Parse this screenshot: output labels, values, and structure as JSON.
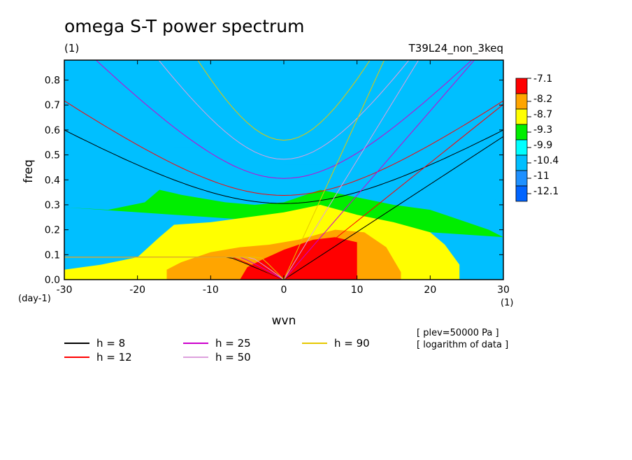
{
  "chart_data": {
    "type": "heatmap",
    "title": "omega S-T power spectrum",
    "subtitle_left": "(1)",
    "subtitle_right": "T39L24_non_3keq",
    "xlabel": "wvn",
    "ylabel": "freq",
    "x_unit": "(1)",
    "y_unit": "(day-1)",
    "xlim": [
      -30,
      30
    ],
    "ylim": [
      0,
      0.88
    ],
    "xticks": [
      -30,
      -20,
      -10,
      0,
      10,
      20,
      30
    ],
    "xtick_labels": [
      "-30",
      "-20",
      "-10",
      "0",
      "10",
      "20",
      "30"
    ],
    "yticks": [
      0,
      0.1,
      0.2,
      0.3,
      0.4,
      0.5,
      0.6,
      0.7,
      0.8
    ],
    "ytick_labels": [
      "0.0",
      "0.1",
      "0.2",
      "0.3",
      "0.4",
      "0.5",
      "0.6",
      "0.7",
      "0.8"
    ],
    "colorbar": {
      "levels": [
        "-7.1",
        "-8.2",
        "-8.7",
        "-9.3",
        "-9.9",
        "-10.4",
        "-11",
        "-12.1"
      ],
      "colors": [
        "#ff0000",
        "#ffa500",
        "#ffff00",
        "#00ee00",
        "#00ffff",
        "#00bfff",
        "#1e90ff",
        "#0064ff"
      ]
    },
    "filled_regions": [
      {
        "level": "top",
        "color": "#0064ff",
        "boundary": [
          [
            -30,
            0.88
          ],
          [
            -30,
            0.79
          ],
          [
            -24,
            0.74
          ],
          [
            -18,
            0.73
          ],
          [
            -10,
            0.76
          ],
          [
            -4,
            0.79
          ],
          [
            0,
            0.78
          ],
          [
            3,
            0.81
          ],
          [
            5,
            0.85
          ],
          [
            6,
            0.88
          ]
        ]
      },
      {
        "level": "top-right",
        "color": "#0064ff",
        "boundary": [
          [
            19,
            0.88
          ],
          [
            20,
            0.84
          ],
          [
            24,
            0.81
          ],
          [
            28,
            0.83
          ],
          [
            30,
            0.85
          ],
          [
            30,
            0.88
          ]
        ]
      },
      {
        "level": "-11",
        "color": "#1e90ff",
        "boundary": [
          [
            -30,
            0.88
          ],
          [
            -30,
            0.69
          ],
          [
            -24,
            0.67
          ],
          [
            -16,
            0.66
          ],
          [
            -8,
            0.67
          ],
          [
            -2,
            0.68
          ],
          [
            4,
            0.71
          ],
          [
            10,
            0.73
          ],
          [
            16,
            0.75
          ],
          [
            22,
            0.75
          ],
          [
            26,
            0.79
          ],
          [
            28,
            0.82
          ],
          [
            30,
            0.83
          ],
          [
            30,
            0.88
          ]
        ]
      },
      {
        "level": "-10.4",
        "color": "#00bfff",
        "boundary": [
          [
            -30,
            0.88
          ],
          [
            -30,
            0.49
          ],
          [
            -25,
            0.47
          ],
          [
            -20,
            0.49
          ],
          [
            -15,
            0.53
          ],
          [
            -10,
            0.53
          ],
          [
            -5,
            0.5
          ],
          [
            0,
            0.46
          ],
          [
            5,
            0.46
          ],
          [
            10,
            0.46
          ],
          [
            15,
            0.43
          ],
          [
            20,
            0.4
          ],
          [
            25,
            0.36
          ],
          [
            28,
            0.33
          ],
          [
            30,
            0.31
          ],
          [
            30,
            0.88
          ]
        ]
      },
      {
        "level": "-9.9",
        "color": "#00ee00",
        "boundary": [
          [
            -30,
            0.29
          ],
          [
            -24,
            0.28
          ],
          [
            -19,
            0.31
          ],
          [
            -17,
            0.36
          ],
          [
            -14,
            0.34
          ],
          [
            -8,
            0.31
          ],
          [
            -4,
            0.3
          ],
          [
            0,
            0.31
          ],
          [
            5,
            0.36
          ],
          [
            10,
            0.33
          ],
          [
            15,
            0.3
          ],
          [
            20,
            0.28
          ],
          [
            25,
            0.23
          ],
          [
            28,
            0.2
          ],
          [
            30,
            0.17
          ]
        ]
      },
      {
        "level": "-9.3",
        "color": "#ffff00",
        "boundary": [
          [
            -30,
            0.04
          ],
          [
            -25,
            0.06
          ],
          [
            -20,
            0.09
          ],
          [
            -17,
            0.17
          ],
          [
            -15,
            0.22
          ],
          [
            -10,
            0.23
          ],
          [
            -5,
            0.25
          ],
          [
            0,
            0.27
          ],
          [
            5,
            0.3
          ],
          [
            10,
            0.26
          ],
          [
            15,
            0.23
          ],
          [
            20,
            0.19
          ],
          [
            22,
            0.14
          ],
          [
            24,
            0.06
          ],
          [
            24,
            0
          ],
          [
            -30,
            0
          ]
        ]
      },
      {
        "level": "-8.7",
        "color": "#ffa500",
        "boundary": [
          [
            -16,
            0
          ],
          [
            -16,
            0.04
          ],
          [
            -14,
            0.07
          ],
          [
            -10,
            0.11
          ],
          [
            -6,
            0.13
          ],
          [
            -2,
            0.14
          ],
          [
            2,
            0.16
          ],
          [
            7,
            0.2
          ],
          [
            11,
            0.19
          ],
          [
            14,
            0.13
          ],
          [
            15,
            0.08
          ],
          [
            16,
            0.03
          ],
          [
            16,
            0
          ]
        ]
      },
      {
        "level": "-8.2",
        "color": "#ff0000",
        "boundary": [
          [
            -6,
            0
          ],
          [
            -5,
            0.05
          ],
          [
            -3,
            0.08
          ],
          [
            0,
            0.12
          ],
          [
            4,
            0.16
          ],
          [
            7,
            0.17
          ],
          [
            10,
            0.15
          ],
          [
            10,
            0.06
          ],
          [
            10,
            0
          ]
        ]
      }
    ],
    "series": [
      {
        "name": "h =  8",
        "color": "#000000"
      },
      {
        "name": "h = 12",
        "color": "#ff0000"
      },
      {
        "name": "h = 25",
        "color": "#cc00cc"
      },
      {
        "name": "h = 50",
        "color": "#dda0dd"
      },
      {
        "name": "h = 90",
        "color": "#e6c800"
      }
    ],
    "annotations": [
      "[ plev=50000 Pa ]",
      "[ logarithm of data ]"
    ]
  }
}
